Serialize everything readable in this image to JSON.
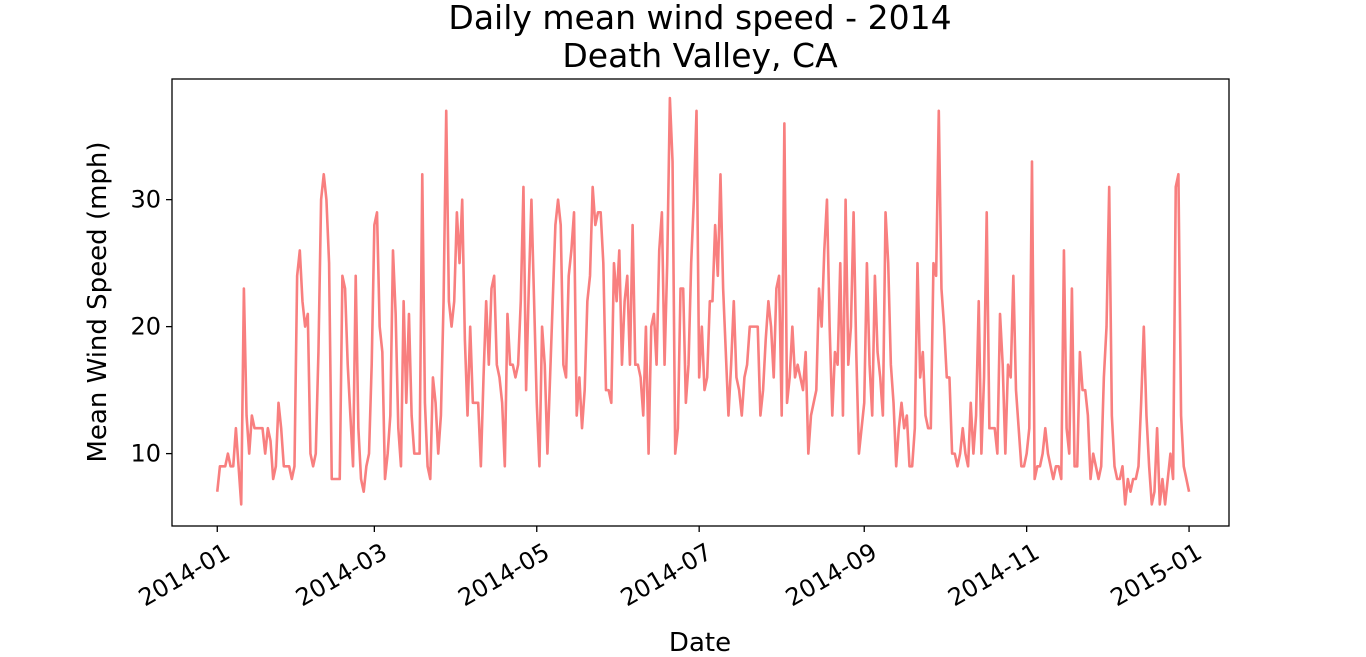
{
  "chart_data": {
    "type": "line",
    "title": "Daily mean wind speed - 2014",
    "subtitle": "Death Valley, CA",
    "xlabel": "Date",
    "ylabel": "Mean Wind Speed (mph)",
    "x_start": "2014-01-01",
    "x_end": "2014-12-31",
    "x_ticks": [
      "2014-01",
      "2014-03",
      "2014-05",
      "2014-07",
      "2014-09",
      "2014-11",
      "2015-01"
    ],
    "y_ticks": [
      "10",
      "20",
      "30"
    ],
    "ylim": [
      4.3,
      39.5
    ],
    "xlim": [
      "2013-12-15",
      "2015-01-16"
    ],
    "grid": false,
    "line_color": "#f87f7f",
    "series": [
      {
        "values": [
          7,
          9,
          9,
          9,
          10,
          9,
          9,
          12,
          9,
          6,
          23,
          13,
          10,
          13,
          12,
          12,
          12,
          12,
          10,
          12,
          11,
          8,
          9,
          14,
          12,
          9,
          9,
          9,
          8,
          9,
          24,
          26,
          22,
          20,
          21,
          10,
          9,
          10,
          18,
          30,
          32,
          30,
          25,
          8,
          8,
          8,
          8,
          24,
          23,
          17,
          13,
          9,
          24,
          12,
          8,
          7,
          9,
          10,
          17,
          28,
          29,
          20,
          18,
          8,
          10,
          13,
          26,
          21,
          12,
          9,
          22,
          14,
          21,
          13,
          10,
          10,
          10,
          32,
          14,
          9,
          8,
          16,
          14,
          10,
          13,
          22,
          37,
          22,
          20,
          22,
          29,
          25,
          30,
          19,
          13,
          20,
          14,
          14,
          14,
          9,
          16,
          22,
          17,
          23,
          24,
          17,
          16,
          14,
          9,
          21,
          17,
          17,
          16,
          17,
          22,
          31,
          15,
          23,
          30,
          22,
          14,
          9,
          20,
          17,
          10,
          16,
          22,
          28,
          30,
          28,
          17,
          16,
          24,
          26,
          29,
          13,
          16,
          12,
          15,
          22,
          24,
          31,
          28,
          29,
          29,
          25,
          15,
          15,
          14,
          25,
          22,
          26,
          17,
          22,
          24,
          17,
          28,
          17,
          17,
          16,
          13,
          20,
          10,
          20,
          21,
          17,
          26,
          29,
          17,
          25,
          38,
          33,
          10,
          12,
          23,
          23,
          14,
          17,
          25,
          30,
          37,
          16,
          20,
          15,
          16,
          22,
          22,
          28,
          24,
          32,
          23,
          18,
          13,
          17,
          22,
          16,
          15,
          13,
          16,
          17,
          20,
          20,
          20,
          20,
          13,
          15,
          19,
          22,
          20,
          16,
          23,
          24,
          13,
          36,
          14,
          16,
          20,
          16,
          17,
          16,
          15,
          18,
          10,
          13,
          14,
          15,
          23,
          20,
          26,
          30,
          20,
          13,
          18,
          17,
          25,
          13,
          30,
          17,
          20,
          29,
          18,
          10,
          12,
          14,
          25,
          17,
          13,
          24,
          18,
          16,
          13,
          29,
          25,
          17,
          14,
          9,
          12,
          14,
          12,
          13,
          9,
          9,
          12,
          25,
          16,
          18,
          13,
          12,
          12,
          25,
          24,
          37,
          23,
          20,
          16,
          16,
          10,
          10,
          9,
          10,
          12,
          10,
          9,
          14,
          10,
          13,
          22,
          10,
          16,
          29,
          12,
          12,
          12,
          10,
          21,
          17,
          10,
          17,
          16,
          24,
          15,
          12,
          9,
          9,
          10,
          12,
          33,
          8,
          9,
          9,
          10,
          12,
          10,
          9,
          8,
          9,
          9,
          8,
          26,
          12,
          10,
          23,
          9,
          9,
          18,
          15,
          15,
          13,
          8,
          10,
          9,
          8,
          9,
          16,
          20,
          31,
          13,
          9,
          8,
          8,
          9,
          6,
          8,
          7,
          8,
          8,
          9,
          14,
          20,
          13,
          9,
          6,
          7,
          12,
          6,
          8,
          6,
          8,
          10,
          8,
          31,
          32,
          13,
          9,
          8,
          7
        ]
      }
    ]
  }
}
